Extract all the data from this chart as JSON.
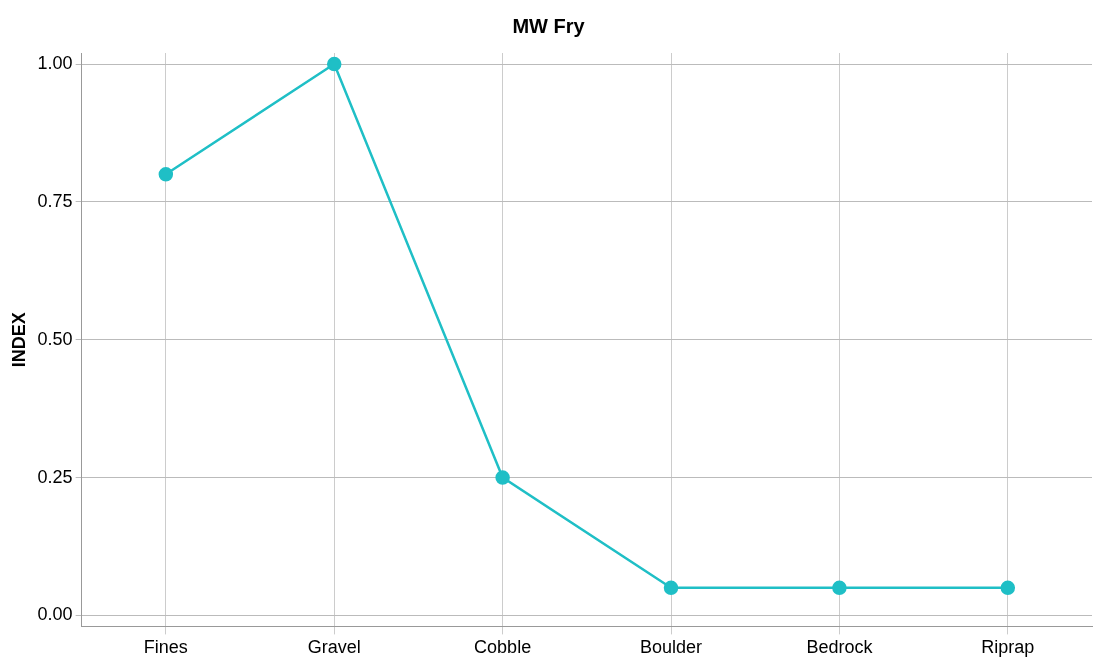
{
  "chart_data": {
    "type": "line",
    "title": "MW Fry",
    "ylabel": "INDEX",
    "categories": [
      "Fines",
      "Gravel",
      "Cobble",
      "Boulder",
      "Bedrock",
      "Riprap"
    ],
    "series": [
      {
        "color": "#1fbfc6",
        "values": [
          0.8,
          1.0,
          0.25,
          0.05,
          0.05,
          0.05
        ]
      }
    ],
    "ylim": [
      -0.02,
      1.02
    ],
    "yticks": [
      {
        "value": 0,
        "label": "0.00"
      },
      {
        "value": 0.25,
        "label": "0.25"
      },
      {
        "value": 0.5,
        "label": "0.50"
      },
      {
        "value": 0.75,
        "label": "0.75"
      },
      {
        "value": 1,
        "label": "1.00"
      }
    ],
    "grid": true,
    "legend": false,
    "marker": "circle",
    "line_style": "solid"
  }
}
